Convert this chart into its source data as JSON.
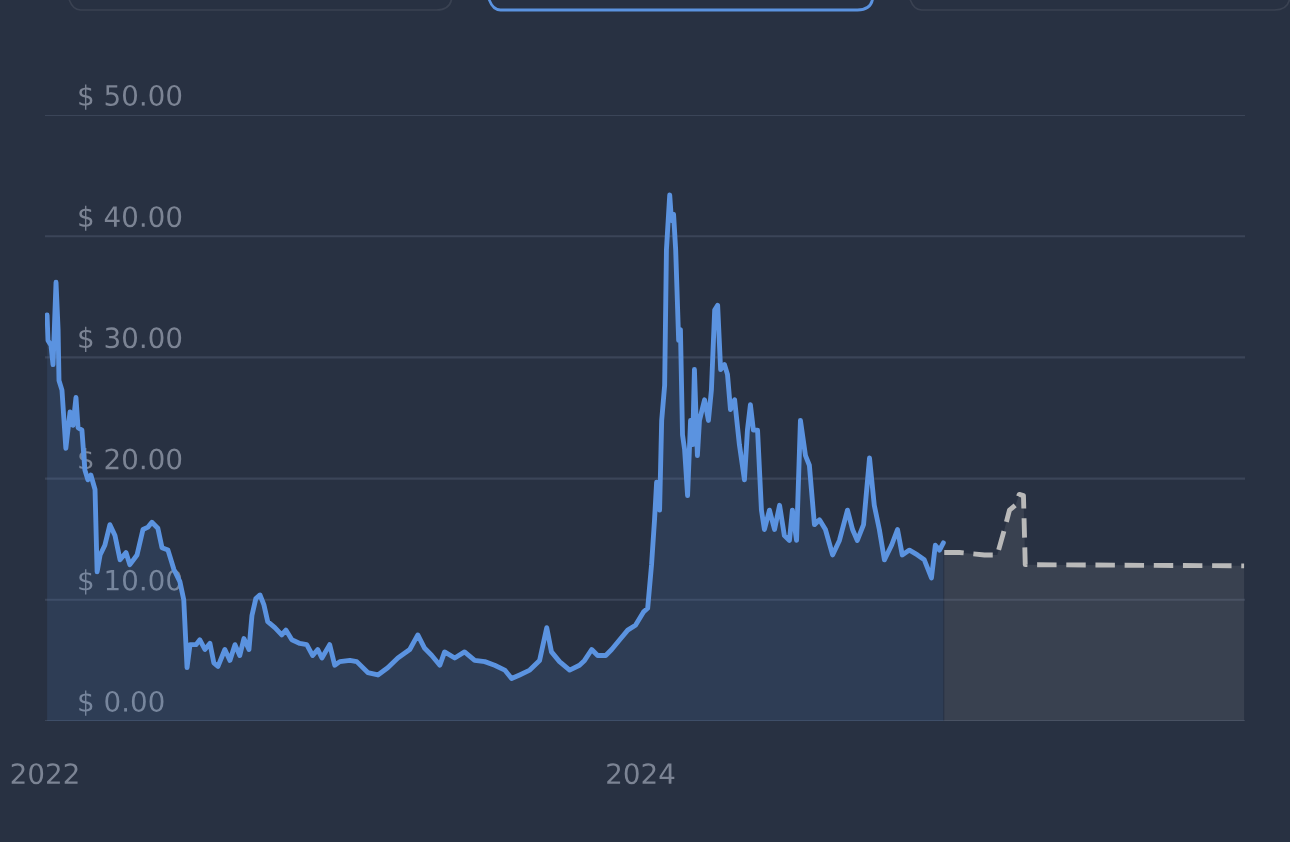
{
  "chart_data": {
    "type": "area",
    "xlim": [
      2022,
      2026.03
    ],
    "xticks": [
      2022,
      2024
    ],
    "ylim": [
      0,
      50
    ],
    "yticks": [
      {
        "value": 0,
        "label": "$ 0.00"
      },
      {
        "value": 10,
        "label": "$ 10.00"
      },
      {
        "value": 20,
        "label": "$ 20.00"
      },
      {
        "value": 30,
        "label": "$ 30.00"
      },
      {
        "value": 40,
        "label": "$ 40.00"
      },
      {
        "value": 50,
        "label": "$ 50.00"
      }
    ],
    "grid": "y",
    "series": [
      {
        "color": "#5b93e0",
        "line_style": "solid",
        "x": [
          2022.007,
          2022.01,
          2022.02,
          2022.027,
          2022.037,
          2022.044,
          2022.047,
          2022.057,
          2022.07,
          2022.084,
          2022.094,
          2022.104,
          2022.111,
          2022.124,
          2022.134,
          2022.144,
          2022.154,
          2022.168,
          2022.175,
          2022.185,
          2022.201,
          2022.218,
          2022.235,
          2022.252,
          2022.272,
          2022.285,
          2022.309,
          2022.329,
          2022.346,
          2022.359,
          2022.379,
          2022.393,
          2022.413,
          2022.433,
          2022.453,
          2022.466,
          2022.477,
          2022.487,
          2022.507,
          2022.52,
          2022.537,
          2022.554,
          2022.567,
          2022.581,
          2022.604,
          2022.621,
          2022.638,
          2022.654,
          2022.668,
          2022.685,
          2022.695,
          2022.708,
          2022.722,
          2022.735,
          2022.748,
          2022.772,
          2022.795,
          2022.809,
          2022.829,
          2022.856,
          2022.879,
          2022.899,
          2022.916,
          2022.93,
          2022.956,
          2022.973,
          2022.99,
          2023.024,
          2023.047,
          2023.084,
          2023.118,
          2023.151,
          2023.185,
          2023.225,
          2023.252,
          2023.275,
          2023.299,
          2023.326,
          2023.342,
          2023.376,
          2023.409,
          2023.443,
          2023.477,
          2023.51,
          2023.544,
          2023.567,
          2023.594,
          2023.628,
          2023.661,
          2023.685,
          2023.701,
          2023.728,
          2023.762,
          2023.795,
          2023.812,
          2023.836,
          2023.856,
          2023.883,
          2023.903,
          2023.93,
          2023.957,
          2023.983,
          2024.01,
          2024.024,
          2024.037,
          2024.047,
          2024.054,
          2024.064,
          2024.071,
          2024.081,
          2024.087,
          2024.098,
          2024.104,
          2024.111,
          2024.118,
          2024.128,
          2024.134,
          2024.141,
          2024.148,
          2024.158,
          2024.168,
          2024.175,
          2024.181,
          2024.191,
          2024.198,
          2024.215,
          2024.228,
          2024.238,
          2024.249,
          2024.259,
          2024.269,
          2024.282,
          2024.292,
          2024.302,
          2024.316,
          2024.332,
          2024.349,
          2024.359,
          2024.369,
          2024.379,
          2024.393,
          2024.406,
          2024.416,
          2024.433,
          2024.45,
          2024.467,
          2024.483,
          2024.5,
          2024.51,
          2024.524,
          2024.537,
          2024.554,
          2024.567,
          2024.584,
          2024.601,
          2024.621,
          2024.645,
          2024.668,
          2024.695,
          2024.712,
          2024.728,
          2024.749,
          2024.769,
          2024.785,
          2024.802,
          2024.819,
          2024.843,
          2024.863,
          2024.879,
          2024.903,
          2024.93,
          2024.953,
          2024.977,
          2024.99,
          2025.004,
          2025.017
        ],
        "values": [
          33.5,
          31.4,
          31.0,
          29.4,
          36.2,
          32.3,
          28.1,
          27.3,
          22.5,
          25.5,
          24.4,
          26.7,
          24.2,
          24.0,
          20.7,
          19.9,
          20.3,
          19.1,
          12.3,
          13.7,
          14.5,
          16.2,
          15.3,
          13.3,
          13.9,
          12.9,
          13.7,
          15.8,
          16.0,
          16.4,
          15.9,
          14.3,
          14.1,
          12.5,
          11.5,
          10.0,
          4.4,
          6.3,
          6.3,
          6.7,
          5.9,
          6.4,
          4.8,
          4.5,
          5.9,
          5.0,
          6.3,
          5.4,
          6.8,
          5.9,
          8.7,
          10.1,
          10.4,
          9.6,
          8.2,
          7.7,
          7.1,
          7.5,
          6.7,
          6.4,
          6.3,
          5.4,
          5.9,
          5.2,
          6.3,
          4.6,
          4.9,
          5.0,
          4.9,
          4.0,
          3.8,
          4.4,
          5.2,
          5.9,
          7.1,
          6.0,
          5.4,
          4.6,
          5.7,
          5.2,
          5.7,
          5.0,
          4.9,
          4.6,
          4.2,
          3.5,
          3.8,
          4.2,
          5.0,
          7.7,
          5.7,
          4.9,
          4.2,
          4.6,
          5.0,
          5.9,
          5.4,
          5.4,
          5.9,
          6.7,
          7.5,
          7.9,
          9.0,
          9.3,
          12.9,
          16.6,
          19.7,
          17.4,
          24.8,
          27.7,
          38.9,
          43.4,
          41.3,
          41.8,
          38.9,
          31.4,
          32.3,
          23.6,
          22.4,
          18.6,
          24.8,
          22.8,
          29.0,
          21.9,
          24.8,
          26.5,
          24.8,
          27.3,
          33.9,
          34.3,
          29.0,
          29.4,
          28.6,
          25.7,
          26.5,
          22.8,
          19.9,
          24.0,
          26.1,
          24.0,
          24.0,
          17.4,
          15.8,
          17.4,
          15.8,
          17.8,
          15.3,
          14.9,
          17.4,
          14.9,
          24.8,
          21.9,
          21.1,
          16.2,
          16.6,
          15.8,
          13.7,
          14.9,
          17.4,
          15.8,
          14.9,
          16.2,
          21.7,
          17.8,
          15.8,
          13.3,
          14.5,
          15.8,
          13.7,
          14.1,
          13.7,
          13.3,
          11.8,
          14.5,
          14.1,
          14.7
        ]
      },
      {
        "color": "#b9b9b9",
        "line_style": "dashed",
        "x": [
          2025.02,
          2025.071,
          2025.155,
          2025.198,
          2025.222,
          2025.239,
          2025.259,
          2025.272,
          2025.286,
          2025.292,
          2026.027
        ],
        "values": [
          13.9,
          13.9,
          13.7,
          13.7,
          15.8,
          17.4,
          17.8,
          18.7,
          18.6,
          12.9,
          12.8
        ]
      }
    ]
  }
}
